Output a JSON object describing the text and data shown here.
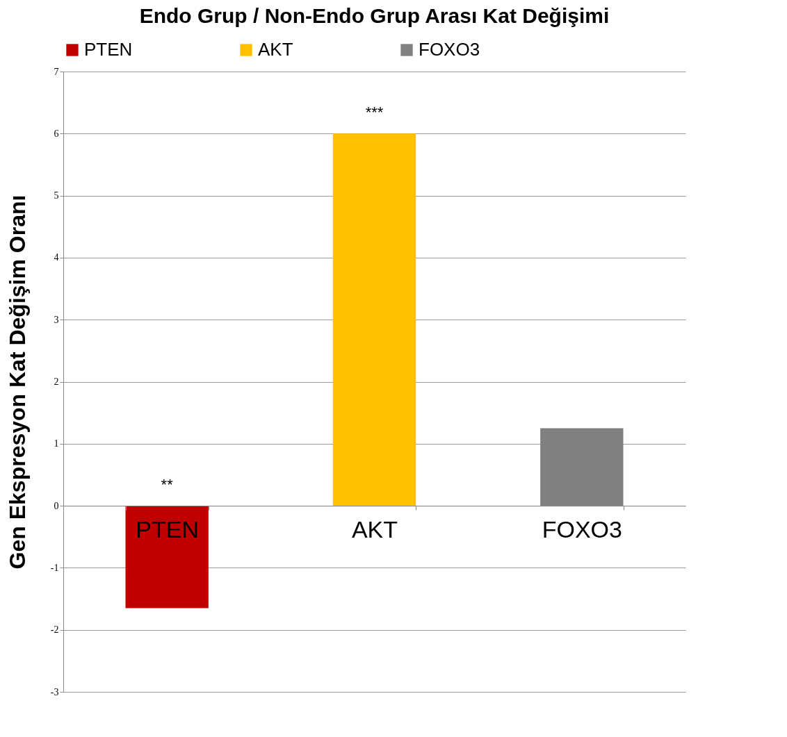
{
  "chart_data": {
    "type": "bar",
    "title": "Endo Grup / Non-Endo Grup Arası Kat Değişimi",
    "ylabel": "Gen Ekspresyon Kat Değişim Oranı",
    "categories": [
      "PTEN",
      "AKT",
      "FOXO3"
    ],
    "series": [
      {
        "name": "PTEN",
        "color": "#c00000",
        "values": [
          -1.65,
          null,
          null
        ]
      },
      {
        "name": "AKT",
        "color": "#ffc000",
        "values": [
          null,
          6.0,
          null
        ]
      },
      {
        "name": "FOXO3",
        "color": "#808080",
        "values": [
          null,
          null,
          1.25
        ]
      }
    ],
    "ylim": [
      -3,
      7
    ],
    "yticks": [
      -3,
      -2,
      -1,
      0,
      1,
      2,
      3,
      4,
      5,
      6,
      7
    ],
    "grid": "y",
    "legend": "top",
    "annotations": [
      "**",
      "***"
    ]
  }
}
